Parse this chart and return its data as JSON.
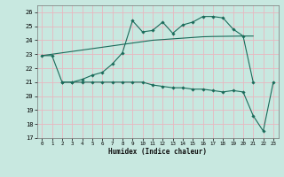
{
  "xlabel": "Humidex (Indice chaleur)",
  "background_color": "#c8e8e0",
  "grid_color": "#e8b8c0",
  "line_color": "#1a6b5a",
  "xlim": [
    -0.5,
    23.5
  ],
  "ylim": [
    17,
    26.5
  ],
  "xticks": [
    0,
    1,
    2,
    3,
    4,
    5,
    6,
    7,
    8,
    9,
    10,
    11,
    12,
    13,
    14,
    15,
    16,
    17,
    18,
    19,
    20,
    21,
    22,
    23
  ],
  "yticks": [
    17,
    18,
    19,
    20,
    21,
    22,
    23,
    24,
    25,
    26
  ],
  "line_upper_x": [
    0,
    1,
    2,
    3,
    4,
    5,
    6,
    7,
    8,
    9,
    10,
    11,
    12,
    13,
    14,
    15,
    16,
    17,
    18,
    19,
    20,
    21
  ],
  "line_upper_y": [
    22.9,
    22.9,
    21.0,
    21.0,
    21.2,
    21.5,
    21.7,
    22.3,
    23.1,
    25.4,
    24.6,
    24.7,
    25.3,
    24.5,
    25.1,
    25.3,
    25.7,
    25.7,
    25.6,
    24.8,
    24.3,
    21.0
  ],
  "line_diag_x": [
    0,
    1,
    2,
    3,
    4,
    5,
    6,
    7,
    8,
    9,
    10,
    11,
    12,
    13,
    14,
    15,
    16,
    17,
    18,
    19,
    20,
    21
  ],
  "line_diag_y": [
    22.9,
    23.0,
    23.1,
    23.2,
    23.3,
    23.4,
    23.5,
    23.6,
    23.7,
    23.8,
    23.9,
    24.0,
    24.05,
    24.1,
    24.15,
    24.2,
    24.25,
    24.27,
    24.28,
    24.29,
    24.3,
    24.3
  ],
  "line_lower_x": [
    2,
    3,
    4,
    5,
    6,
    7,
    8,
    9,
    10,
    11,
    12,
    13,
    14,
    15,
    16,
    17,
    18,
    19,
    20,
    21,
    22,
    23
  ],
  "line_lower_y": [
    21.0,
    21.0,
    21.0,
    21.0,
    21.0,
    21.0,
    21.0,
    21.0,
    21.0,
    20.8,
    20.7,
    20.6,
    20.6,
    20.5,
    20.5,
    20.4,
    20.3,
    20.4,
    20.3,
    18.6,
    17.5,
    21.0
  ]
}
